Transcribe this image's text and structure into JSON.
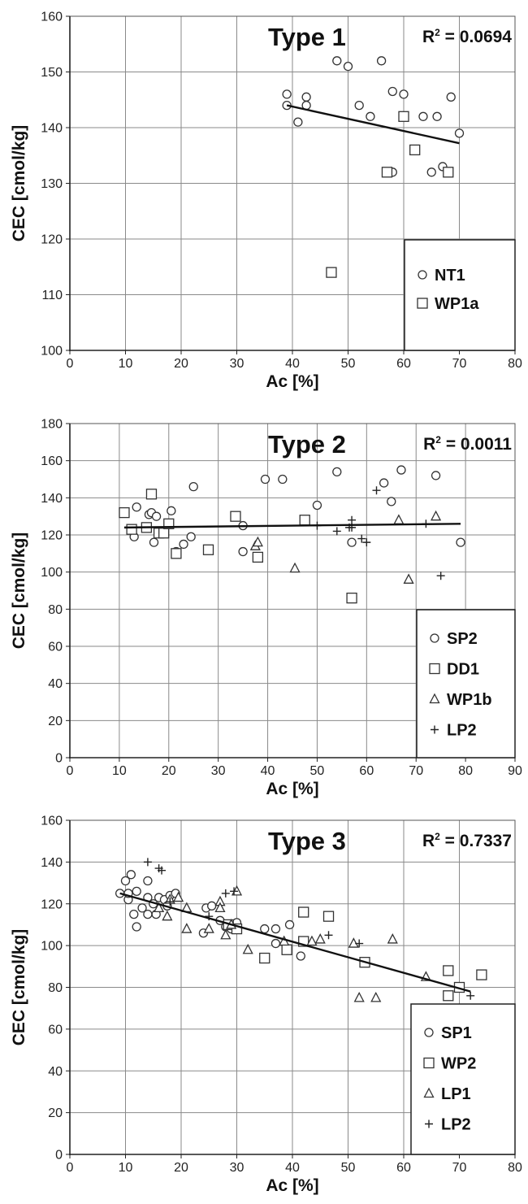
{
  "chart_data": [
    {
      "type": "scatter",
      "title": "Type 1",
      "r2_label": "R",
      "r2_sup": "2",
      "r2_value": " = 0.0694",
      "xlabel": "Ac [%]",
      "ylabel": "CEC [cmol/kg]",
      "xlim": [
        0,
        80
      ],
      "ylim": [
        100,
        160
      ],
      "xticks": [
        "0",
        "10",
        "20",
        "30",
        "40",
        "50",
        "60",
        "70",
        "80"
      ],
      "yticks": [
        "100",
        "110",
        "120",
        "130",
        "140",
        "150",
        "160"
      ],
      "grid": true,
      "legend_position": "bottom-right",
      "trendline": [
        [
          39,
          144
        ],
        [
          70,
          137.2
        ]
      ],
      "series": [
        {
          "name": "NT1",
          "marker": "circle",
          "points": [
            [
              39,
              146
            ],
            [
              39,
              144
            ],
            [
              41,
              141
            ],
            [
              42.5,
              145.5
            ],
            [
              42.5,
              144
            ],
            [
              48,
              152
            ],
            [
              50,
              151
            ],
            [
              52,
              144
            ],
            [
              54,
              142
            ],
            [
              56,
              152
            ],
            [
              58,
              146.5
            ],
            [
              60,
              146
            ],
            [
              62,
              136
            ],
            [
              63.5,
              142
            ],
            [
              65,
              132
            ],
            [
              66,
              142
            ],
            [
              67,
              133
            ],
            [
              68.5,
              145.5
            ],
            [
              70,
              139
            ],
            [
              58,
              132
            ]
          ]
        },
        {
          "name": "WP1a",
          "marker": "square",
          "points": [
            [
              47,
              114
            ],
            [
              57,
              132
            ],
            [
              60,
              142
            ],
            [
              62,
              136
            ],
            [
              68,
              132
            ]
          ]
        }
      ]
    },
    {
      "type": "scatter",
      "title": "Type 2",
      "r2_label": "R",
      "r2_sup": "2",
      "r2_value": " = 0.0011",
      "xlabel": "Ac [%]",
      "ylabel": "CEC [cmol/kg]",
      "xlim": [
        0,
        90
      ],
      "ylim": [
        0,
        180
      ],
      "xticks": [
        "0",
        "10",
        "20",
        "30",
        "40",
        "50",
        "60",
        "70",
        "80",
        "90"
      ],
      "yticks": [
        "0",
        "20",
        "40",
        "60",
        "80",
        "100",
        "120",
        "140",
        "160",
        "180"
      ],
      "grid": true,
      "legend_position": "bottom-right",
      "trendline": [
        [
          11,
          124
        ],
        [
          79,
          126
        ]
      ],
      "series": [
        {
          "name": "SP2",
          "marker": "circle",
          "points": [
            [
              13,
              119
            ],
            [
              13.5,
              135
            ],
            [
              16,
              131
            ],
            [
              16.5,
              132
            ],
            [
              17,
              116
            ],
            [
              17.5,
              130
            ],
            [
              19,
              121
            ],
            [
              20.5,
              133
            ],
            [
              21.5,
              111
            ],
            [
              23,
              115
            ],
            [
              24.5,
              119
            ],
            [
              25,
              146
            ],
            [
              35,
              125
            ],
            [
              35,
              111
            ],
            [
              39.5,
              150
            ],
            [
              43,
              150
            ],
            [
              50,
              136
            ],
            [
              54,
              154
            ],
            [
              57,
              116
            ],
            [
              63.5,
              148
            ],
            [
              65,
              138
            ],
            [
              67,
              155
            ],
            [
              74,
              152
            ],
            [
              79,
              116
            ]
          ]
        },
        {
          "name": "DD1",
          "marker": "square",
          "points": [
            [
              11,
              132
            ],
            [
              12.5,
              123
            ],
            [
              15.5,
              124
            ],
            [
              16.5,
              142
            ],
            [
              18,
              121
            ],
            [
              19,
              121
            ],
            [
              20,
              126
            ],
            [
              21.5,
              110
            ],
            [
              28,
              112
            ],
            [
              33.5,
              130
            ],
            [
              38,
              108
            ],
            [
              47.5,
              128
            ],
            [
              57,
              86
            ]
          ]
        },
        {
          "name": "WP1b",
          "marker": "triangle",
          "points": [
            [
              37.5,
              114
            ],
            [
              38,
              116
            ],
            [
              45.5,
              102
            ],
            [
              66.5,
              128
            ],
            [
              68.5,
              96
            ],
            [
              74,
              130
            ]
          ]
        },
        {
          "name": "LP2",
          "marker": "plus",
          "points": [
            [
              50,
              125
            ],
            [
              54,
              122
            ],
            [
              56.5,
              124
            ],
            [
              57,
              124
            ],
            [
              57,
              128
            ],
            [
              59,
              118
            ],
            [
              60,
              116
            ],
            [
              62,
              144
            ],
            [
              72,
              126
            ],
            [
              75,
              98
            ]
          ]
        }
      ]
    },
    {
      "type": "scatter",
      "title": "Type 3",
      "r2_label": "R",
      "r2_sup": "2",
      "r2_value": " = 0.7337",
      "xlabel": "Ac [%]",
      "ylabel": "CEC [cmol/kg]",
      "xlim": [
        0,
        80
      ],
      "ylim": [
        0,
        160
      ],
      "xticks": [
        "0",
        "10",
        "20",
        "30",
        "40",
        "50",
        "60",
        "70",
        "80"
      ],
      "yticks": [
        "0",
        "20",
        "40",
        "60",
        "80",
        "100",
        "120",
        "140",
        "160"
      ],
      "grid": true,
      "legend_position": "bottom-right",
      "trendline": [
        [
          9,
          125
        ],
        [
          72,
          78
        ]
      ],
      "series": [
        {
          "name": "SP1",
          "marker": "circle",
          "points": [
            [
              9,
              125
            ],
            [
              10,
              131
            ],
            [
              10.5,
              122
            ],
            [
              10.5,
              125
            ],
            [
              11,
              134
            ],
            [
              11.5,
              115
            ],
            [
              12,
              109
            ],
            [
              12,
              126
            ],
            [
              13,
              118
            ],
            [
              14,
              131
            ],
            [
              14,
              115
            ],
            [
              14,
              123
            ],
            [
              15,
              120
            ],
            [
              15.5,
              115
            ],
            [
              16,
              123
            ],
            [
              17,
              122
            ],
            [
              17.5,
              119
            ],
            [
              18,
              124
            ],
            [
              19,
              125
            ],
            [
              24,
              106
            ],
            [
              24.5,
              118
            ],
            [
              25.5,
              119
            ],
            [
              27,
              112
            ],
            [
              28,
              109
            ],
            [
              29,
              108
            ],
            [
              30,
              111
            ],
            [
              35,
              108
            ],
            [
              37,
              108
            ],
            [
              37,
              101
            ],
            [
              39.5,
              110
            ],
            [
              41.5,
              95
            ]
          ]
        },
        {
          "name": "WP2",
          "marker": "square",
          "points": [
            [
              28.5,
              110
            ],
            [
              30,
              108
            ],
            [
              35,
              94
            ],
            [
              39,
              98
            ],
            [
              42,
              116
            ],
            [
              42,
              102
            ],
            [
              46.5,
              114
            ],
            [
              53,
              92
            ],
            [
              68,
              88
            ],
            [
              68,
              76
            ],
            [
              70,
              80
            ],
            [
              74,
              86
            ]
          ]
        },
        {
          "name": "LP1",
          "marker": "triangle",
          "points": [
            [
              16,
              118
            ],
            [
              17.5,
              114
            ],
            [
              18,
              122
            ],
            [
              19.5,
              123
            ],
            [
              21,
              108
            ],
            [
              21,
              118
            ],
            [
              25,
              108
            ],
            [
              27,
              121
            ],
            [
              27,
              118
            ],
            [
              28,
              105
            ],
            [
              29,
              110
            ],
            [
              30,
              126
            ],
            [
              32,
              98
            ],
            [
              38.5,
              102
            ],
            [
              43.5,
              102
            ],
            [
              45,
              103
            ],
            [
              51,
              101
            ],
            [
              52,
              75
            ],
            [
              55,
              75
            ],
            [
              58,
              103
            ],
            [
              64,
              85
            ]
          ]
        },
        {
          "name": "LP2",
          "marker": "plus",
          "points": [
            [
              14,
              140
            ],
            [
              16,
              137
            ],
            [
              16.5,
              136
            ],
            [
              18,
              121
            ],
            [
              25,
              114
            ],
            [
              28,
              125
            ],
            [
              29.5,
              126
            ],
            [
              46.5,
              105
            ],
            [
              52,
              101
            ],
            [
              72,
              76
            ]
          ]
        }
      ]
    }
  ]
}
